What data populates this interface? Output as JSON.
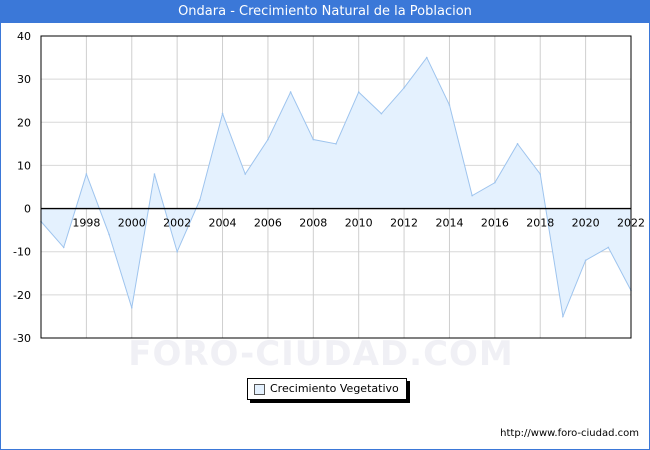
{
  "title": "Ondara - Crecimiento Natural de la Poblacion",
  "watermark": "FORO-CIUDAD.COM",
  "source": "http://www.foro-ciudad.com",
  "colors": {
    "accent": "#3b78d8",
    "area_fill": "#e4f1fe",
    "area_line": "#9ec4ee"
  },
  "chart_data": {
    "type": "area",
    "title": "Ondara - Crecimiento Natural de la Poblacion",
    "xlabel": "",
    "ylabel": "",
    "x": [
      1996,
      1997,
      1998,
      1999,
      2000,
      2001,
      2002,
      2003,
      2004,
      2005,
      2006,
      2007,
      2008,
      2009,
      2010,
      2011,
      2012,
      2013,
      2014,
      2015,
      2016,
      2017,
      2018,
      2019,
      2020,
      2021,
      2022
    ],
    "series": [
      {
        "name": "Crecimiento Vegetativo",
        "values": [
          -3,
          -9,
          8,
          -6,
          -23,
          8,
          -10,
          2,
          22,
          8,
          16,
          27,
          16,
          15,
          27,
          22,
          28,
          35,
          24,
          3,
          6,
          15,
          8,
          -25,
          -12,
          -9,
          -19
        ]
      }
    ],
    "x_ticks": [
      "1998",
      "2000",
      "2002",
      "2004",
      "2006",
      "2008",
      "2010",
      "2012",
      "2014",
      "2016",
      "2018",
      "2020",
      "2022"
    ],
    "y_ticks": [
      "-30",
      "-20",
      "-10",
      "0",
      "10",
      "20",
      "30",
      "40"
    ],
    "ylim": [
      -30,
      40
    ],
    "xlim": [
      1996,
      2022
    ],
    "grid": true,
    "legend": "bottom-center"
  }
}
